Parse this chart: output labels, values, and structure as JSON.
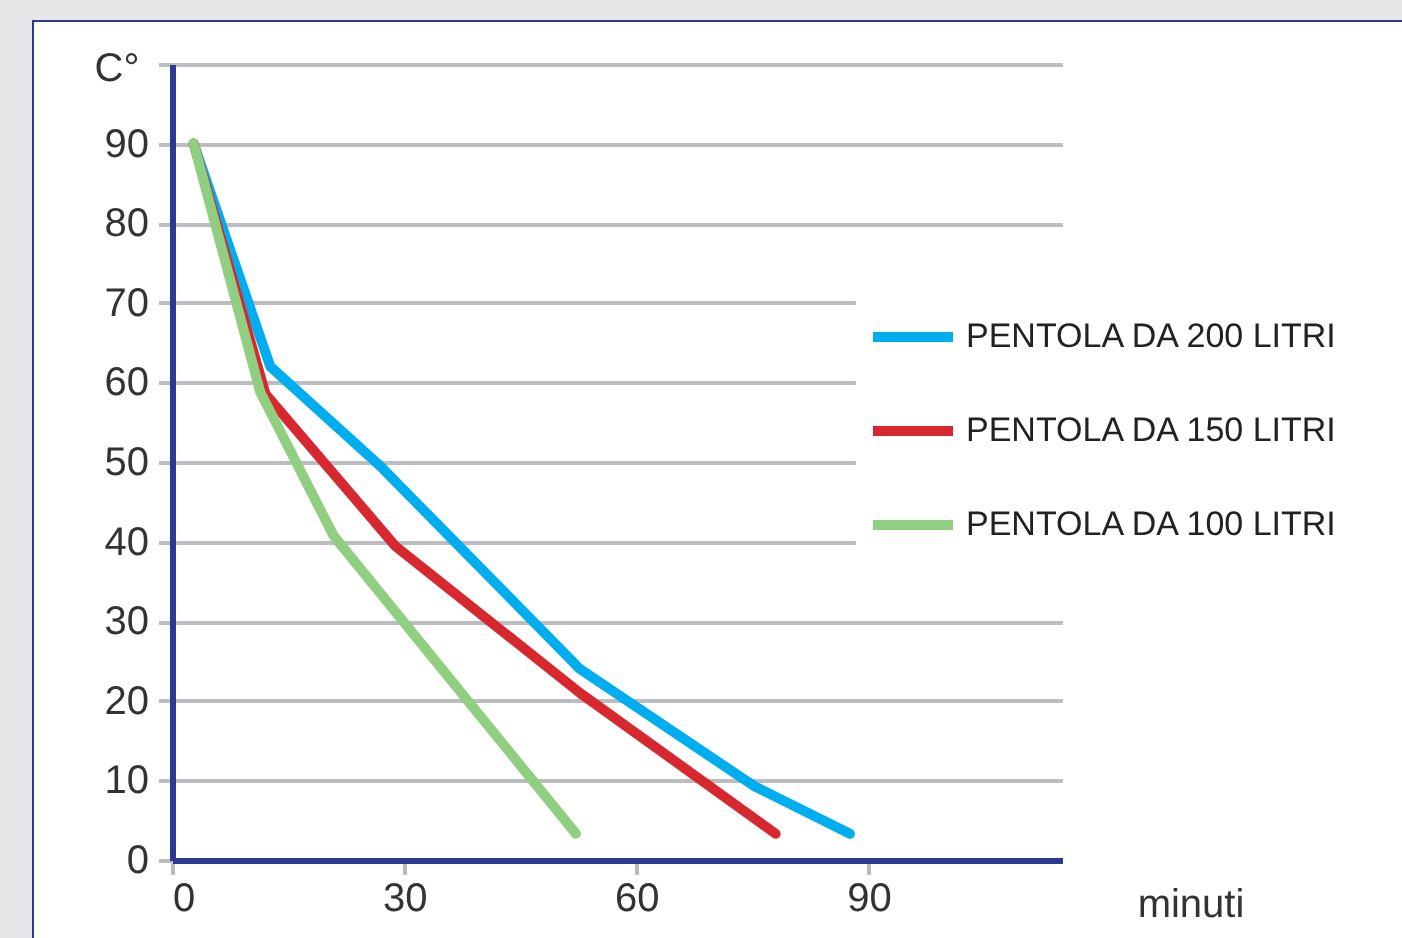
{
  "chart_data": {
    "type": "line",
    "xlabel": "minuti",
    "ylabel": "C°",
    "xlim": [
      0,
      115
    ],
    "xticks": [
      0,
      30,
      60,
      90
    ],
    "ylim": [
      0,
      100
    ],
    "yticks": [
      0,
      10,
      20,
      30,
      40,
      50,
      60,
      70,
      80,
      90,
      {
        "value": 100,
        "label": null
      }
    ],
    "grid": "y",
    "legend": "right",
    "line_style": "solid",
    "series": [
      {
        "name": "PENTOLA DA 200 LITRI",
        "color": "#00aeef",
        "x": [
          2.8,
          12.7,
          26.9,
          52.7,
          75.2,
          87.6
        ],
        "values": [
          90,
          62,
          49.5,
          24,
          9.3,
          3.3
        ]
      },
      {
        "name": "PENTOLA DA 150 LITRI",
        "color": "#d7282f",
        "x": [
          2.8,
          12.1,
          28.9,
          52.7,
          78
        ],
        "values": [
          90,
          58.5,
          39.4,
          21,
          3.3
        ]
      },
      {
        "name": "PENTOLA DA 100 LITRI",
        "color": "#8fcf7f",
        "x": [
          2.8,
          11.4,
          20.9,
          52.2
        ],
        "values": [
          90,
          58.8,
          40.7,
          3.3
        ]
      }
    ]
  }
}
